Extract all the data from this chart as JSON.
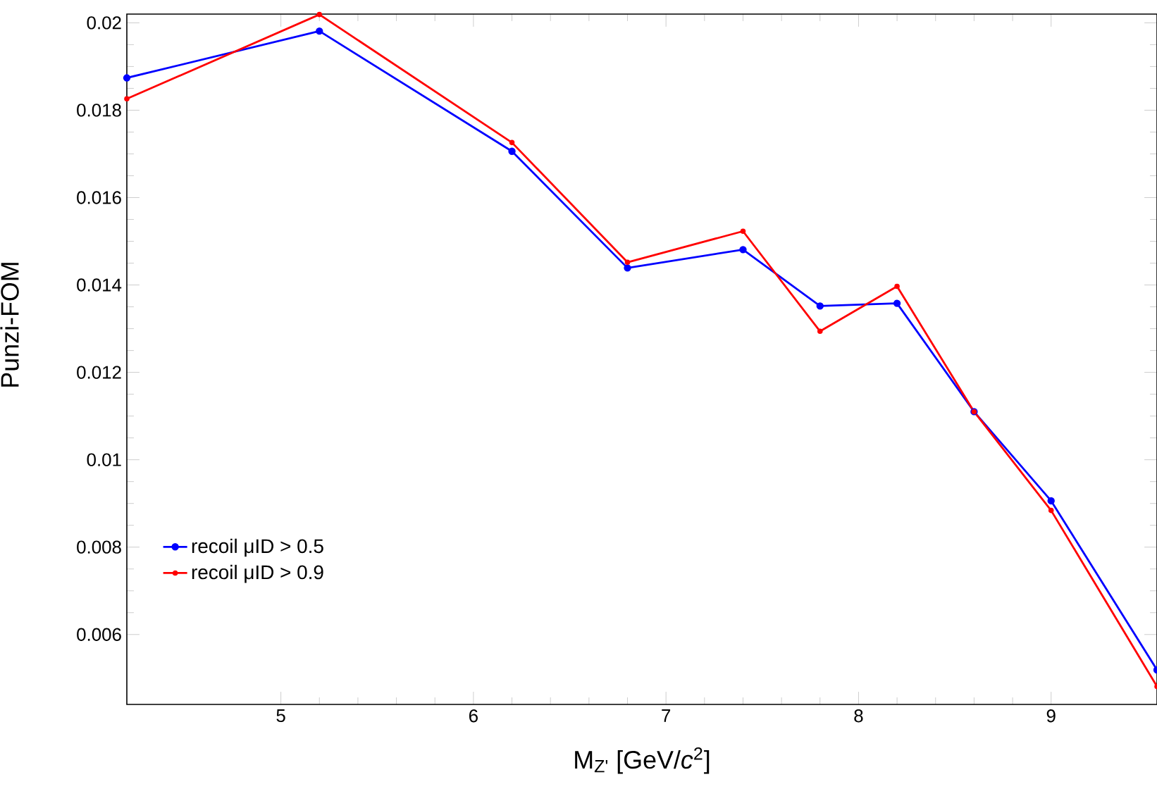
{
  "chart_data": {
    "type": "line",
    "xlabel": "M$_{Z'}$ [GeV/*c*$^{2}$]",
    "ylabel": "Punzi-FOM",
    "x": [
      4.2,
      5.2,
      6.2,
      6.8,
      7.4,
      7.8,
      8.2,
      8.6,
      9.0,
      9.55
    ],
    "series": [
      {
        "name": "recoil μID > 0.5",
        "color": "#0000ff",
        "values": [
          0.01874,
          0.01981,
          0.01706,
          0.01439,
          0.01481,
          0.01352,
          0.01358,
          0.0111,
          0.00906,
          0.00519
        ]
      },
      {
        "name": "recoil μID > 0.9",
        "color": "#ff0000",
        "values": [
          0.01826,
          0.02019,
          0.01726,
          0.01452,
          0.01523,
          0.01294,
          0.01397,
          0.0111,
          0.00884,
          0.00481
        ]
      }
    ],
    "xlim": [
      4.2,
      9.55
    ],
    "ylim": [
      0.0044,
      0.0202
    ],
    "xticks": [
      5,
      6,
      7,
      8,
      9
    ],
    "yticks": [
      0.006,
      0.008,
      0.01,
      0.012,
      0.014,
      0.016,
      0.018,
      0.02
    ],
    "legend": "bottom left",
    "marker": "circle",
    "line_style": "solid",
    "grid": false
  }
}
